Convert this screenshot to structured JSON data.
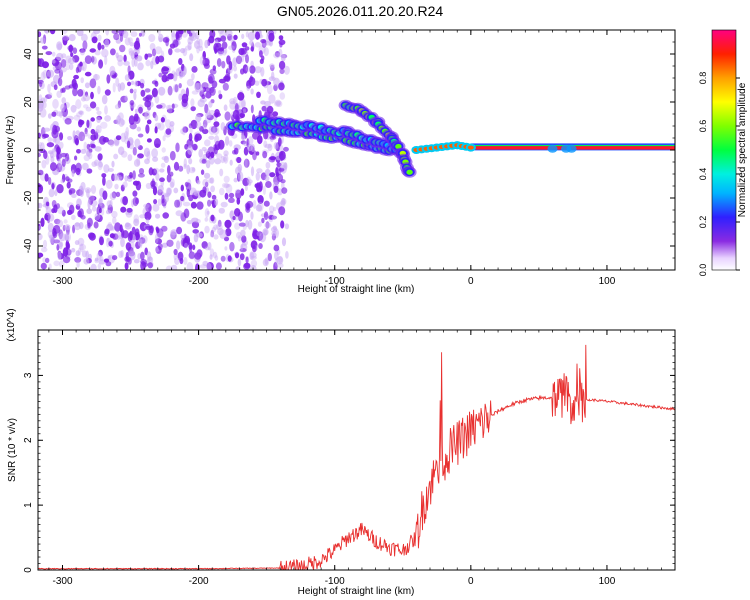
{
  "title": "GN05.2026.011.20.20.R24",
  "chart_data": [
    {
      "type": "heatmap",
      "xlabel": "Height of straight line (km)",
      "ylabel": "Frequency (Hz)",
      "xlim": [
        -318,
        150
      ],
      "ylim": [
        -50,
        50
      ],
      "xticks": [
        -300,
        -200,
        -100,
        0,
        100
      ],
      "yticks": [
        -40,
        -20,
        0,
        20,
        40
      ],
      "colorbar": {
        "label": "Normalized spectral amplitude",
        "range": [
          0,
          1
        ],
        "ticks": [
          0.0,
          0.2,
          0.4,
          0.6,
          0.8
        ]
      },
      "features": [
        {
          "name": "noise",
          "x_range": [
            -318,
            -135
          ],
          "y_range": [
            -50,
            50
          ],
          "amplitude": 0.08
        },
        {
          "name": "descending-trace-lower",
          "points": [
            [
              -175,
              10
            ],
            [
              -150,
              9
            ],
            [
              -120,
              7
            ],
            [
              -95,
              5
            ],
            [
              -75,
              2
            ],
            [
              -60,
              0
            ]
          ],
          "amplitude": 0.35
        },
        {
          "name": "descending-trace-upper",
          "points": [
            [
              -155,
              12
            ],
            [
              -130,
              11
            ],
            [
              -110,
              9
            ],
            [
              -90,
              7
            ],
            [
              -70,
              4
            ],
            [
              -55,
              0
            ]
          ],
          "amplitude": 0.3
        },
        {
          "name": "steep-trace",
          "points": [
            [
              -92,
              19
            ],
            [
              -80,
              16
            ],
            [
              -68,
              11
            ],
            [
              -58,
              5
            ],
            [
              -50,
              -2
            ],
            [
              -45,
              -10
            ]
          ],
          "amplitude": 0.45
        },
        {
          "name": "carrier",
          "points": [
            [
              -40,
              0
            ],
            [
              -25,
              1
            ],
            [
              -10,
              2
            ],
            [
              0,
              1
            ],
            [
              150,
              0.5
            ]
          ],
          "amplitude": 0.95
        }
      ]
    },
    {
      "type": "line",
      "xlabel": "Height of straight line (km)",
      "ylabel": "SNR (10 * v/v)",
      "y_multiplier": "(x10^4)",
      "xlim": [
        -318,
        150
      ],
      "ylim": [
        0,
        3.7
      ],
      "xticks": [
        -300,
        -200,
        -100,
        0,
        100
      ],
      "yticks": [
        0,
        1,
        2,
        3
      ],
      "series": [
        {
          "color": "#e8302f",
          "x": [
            -318,
            -200,
            -140,
            -125,
            -110,
            -100,
            -90,
            -80,
            -70,
            -60,
            -50,
            -40,
            -35,
            -30,
            -25,
            -20,
            -15,
            -10,
            -5,
            0,
            10,
            20,
            30,
            40,
            50,
            60,
            70,
            75,
            80,
            90,
            100,
            120,
            150
          ],
          "values": [
            0.02,
            0.02,
            0.03,
            0.05,
            0.15,
            0.3,
            0.5,
            0.62,
            0.45,
            0.35,
            0.3,
            0.5,
            1.0,
            1.3,
            1.55,
            1.7,
            1.85,
            1.95,
            2.05,
            2.15,
            2.3,
            2.45,
            2.55,
            2.62,
            2.65,
            2.66,
            2.7,
            2.55,
            2.62,
            2.62,
            2.6,
            2.55,
            2.48
          ]
        }
      ]
    }
  ]
}
